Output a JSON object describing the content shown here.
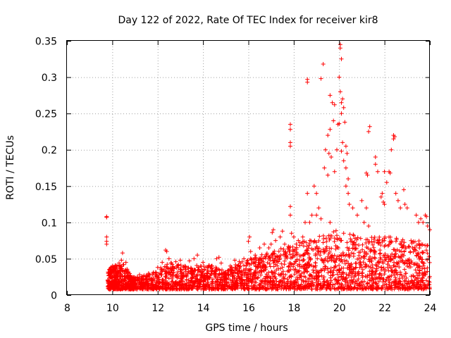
{
  "chart_data": {
    "type": "scatter",
    "title": "Day 122 of 2022, Rate Of TEC Index for receiver kir8",
    "xlabel": "GPS time / hours",
    "ylabel": "ROTI / TECUs",
    "xlim": [
      8,
      24
    ],
    "ylim": [
      0,
      0.35
    ],
    "xticks": [
      8,
      10,
      12,
      14,
      16,
      18,
      20,
      22,
      24
    ],
    "yticks": [
      0,
      0.05,
      0.1,
      0.15,
      0.2,
      0.25,
      0.3,
      0.35
    ],
    "xtick_labels": [
      "8",
      "10",
      "12",
      "14",
      "16",
      "18",
      "20",
      "22",
      "24"
    ],
    "ytick_labels": [
      "0",
      "0.05",
      "0.1",
      "0.15",
      "0.2",
      "0.25",
      "0.3",
      "0.35"
    ],
    "grid": true,
    "marker": "plus",
    "color": "#ff0000",
    "series": [
      {
        "name": "kir8",
        "points": [
          [
            9.75,
            0.108
          ],
          [
            9.75,
            0.107
          ],
          [
            9.75,
            0.08
          ],
          [
            9.75,
            0.074
          ],
          [
            9.75,
            0.07
          ],
          [
            9.8,
            0.02
          ],
          [
            9.9,
            0.028
          ],
          [
            10.0,
            0.032
          ],
          [
            10.1,
            0.038
          ],
          [
            10.2,
            0.04
          ],
          [
            10.3,
            0.044
          ],
          [
            10.4,
            0.048
          ],
          [
            10.45,
            0.058
          ],
          [
            10.5,
            0.042
          ],
          [
            10.6,
            0.045
          ],
          [
            10.7,
            0.032
          ],
          [
            10.8,
            0.026
          ],
          [
            11.0,
            0.024
          ],
          [
            11.2,
            0.028
          ],
          [
            11.4,
            0.027
          ],
          [
            11.6,
            0.03
          ],
          [
            11.8,
            0.03
          ],
          [
            12.0,
            0.038
          ],
          [
            12.2,
            0.045
          ],
          [
            12.35,
            0.062
          ],
          [
            12.4,
            0.06
          ],
          [
            12.5,
            0.05
          ],
          [
            12.6,
            0.044
          ],
          [
            12.8,
            0.046
          ],
          [
            13.0,
            0.048
          ],
          [
            13.2,
            0.04
          ],
          [
            13.4,
            0.047
          ],
          [
            13.6,
            0.05
          ],
          [
            13.75,
            0.055
          ],
          [
            13.9,
            0.04
          ],
          [
            14.0,
            0.045
          ],
          [
            14.2,
            0.038
          ],
          [
            14.4,
            0.04
          ],
          [
            14.6,
            0.05
          ],
          [
            14.7,
            0.052
          ],
          [
            14.8,
            0.044
          ],
          [
            15.0,
            0.03
          ],
          [
            15.2,
            0.04
          ],
          [
            15.4,
            0.048
          ],
          [
            15.6,
            0.046
          ],
          [
            15.8,
            0.05
          ],
          [
            16.0,
            0.074
          ],
          [
            16.05,
            0.08
          ],
          [
            16.1,
            0.06
          ],
          [
            16.3,
            0.055
          ],
          [
            16.5,
            0.065
          ],
          [
            16.7,
            0.07
          ],
          [
            16.9,
            0.065
          ],
          [
            17.0,
            0.07
          ],
          [
            17.05,
            0.086
          ],
          [
            17.1,
            0.09
          ],
          [
            17.2,
            0.075
          ],
          [
            17.4,
            0.08
          ],
          [
            17.5,
            0.088
          ],
          [
            17.6,
            0.07
          ],
          [
            17.8,
            0.06
          ],
          [
            17.85,
            0.235
          ],
          [
            17.85,
            0.228
          ],
          [
            17.85,
            0.21
          ],
          [
            17.85,
            0.205
          ],
          [
            17.85,
            0.122
          ],
          [
            17.85,
            0.11
          ],
          [
            17.9,
            0.085
          ],
          [
            18.0,
            0.08
          ],
          [
            18.2,
            0.075
          ],
          [
            18.4,
            0.08
          ],
          [
            18.6,
            0.297
          ],
          [
            18.6,
            0.293
          ],
          [
            18.6,
            0.14
          ],
          [
            18.5,
            0.1
          ],
          [
            18.7,
            0.1
          ],
          [
            18.8,
            0.11
          ],
          [
            18.9,
            0.15
          ],
          [
            19.0,
            0.14
          ],
          [
            19.1,
            0.12
          ],
          [
            19.3,
            0.318
          ],
          [
            19.2,
            0.298
          ],
          [
            19.6,
            0.275
          ],
          [
            19.7,
            0.265
          ],
          [
            19.8,
            0.262
          ],
          [
            19.9,
            0.2
          ],
          [
            19.95,
            0.235
          ],
          [
            19.75,
            0.24
          ],
          [
            19.6,
            0.228
          ],
          [
            19.5,
            0.22
          ],
          [
            19.4,
            0.2
          ],
          [
            19.55,
            0.195
          ],
          [
            19.65,
            0.19
          ],
          [
            19.35,
            0.175
          ],
          [
            19.8,
            0.17
          ],
          [
            19.5,
            0.165
          ],
          [
            20.05,
            0.345
          ],
          [
            20.05,
            0.34
          ],
          [
            20.1,
            0.325
          ],
          [
            20.0,
            0.3
          ],
          [
            20.05,
            0.28
          ],
          [
            20.15,
            0.27
          ],
          [
            20.1,
            0.265
          ],
          [
            20.2,
            0.258
          ],
          [
            20.1,
            0.25
          ],
          [
            20.25,
            0.238
          ],
          [
            20.0,
            0.236
          ],
          [
            20.15,
            0.21
          ],
          [
            20.3,
            0.205
          ],
          [
            20.1,
            0.198
          ],
          [
            20.35,
            0.195
          ],
          [
            20.2,
            0.185
          ],
          [
            20.3,
            0.175
          ],
          [
            20.4,
            0.16
          ],
          [
            20.3,
            0.15
          ],
          [
            20.4,
            0.14
          ],
          [
            20.45,
            0.125
          ],
          [
            19.0,
            0.11
          ],
          [
            19.2,
            0.105
          ],
          [
            19.6,
            0.1
          ],
          [
            20.6,
            0.12
          ],
          [
            20.8,
            0.11
          ],
          [
            21.0,
            0.13
          ],
          [
            21.1,
            0.1
          ],
          [
            21.2,
            0.12
          ],
          [
            21.3,
            0.095
          ],
          [
            21.2,
            0.168
          ],
          [
            21.25,
            0.165
          ],
          [
            21.35,
            0.232
          ],
          [
            21.3,
            0.225
          ],
          [
            21.6,
            0.19
          ],
          [
            21.6,
            0.18
          ],
          [
            21.7,
            0.17
          ],
          [
            21.85,
            0.135
          ],
          [
            21.9,
            0.14
          ],
          [
            21.95,
            0.128
          ],
          [
            22.0,
            0.125
          ],
          [
            22.1,
            0.155
          ],
          [
            22.0,
            0.17
          ],
          [
            22.2,
            0.17
          ],
          [
            22.25,
            0.168
          ],
          [
            22.3,
            0.2
          ],
          [
            22.4,
            0.22
          ],
          [
            22.4,
            0.215
          ],
          [
            22.45,
            0.218
          ],
          [
            22.5,
            0.14
          ],
          [
            22.6,
            0.13
          ],
          [
            22.7,
            0.12
          ],
          [
            22.85,
            0.145
          ],
          [
            22.9,
            0.125
          ],
          [
            23.0,
            0.12
          ],
          [
            23.4,
            0.11
          ],
          [
            23.5,
            0.1
          ],
          [
            23.6,
            0.105
          ],
          [
            23.7,
            0.1
          ],
          [
            23.8,
            0.11
          ],
          [
            23.85,
            0.108
          ],
          [
            23.9,
            0.095
          ],
          [
            24.0,
            0.09
          ]
        ],
        "band": [
          [
            9.8,
            0.008,
            0.034
          ],
          [
            10.0,
            0.008,
            0.04
          ],
          [
            10.2,
            0.008,
            0.042
          ],
          [
            10.5,
            0.008,
            0.044
          ],
          [
            10.8,
            0.008,
            0.028
          ],
          [
            11.0,
            0.008,
            0.025
          ],
          [
            11.5,
            0.008,
            0.028
          ],
          [
            12.0,
            0.008,
            0.035
          ],
          [
            12.5,
            0.008,
            0.045
          ],
          [
            13.0,
            0.008,
            0.042
          ],
          [
            13.5,
            0.008,
            0.04
          ],
          [
            14.0,
            0.008,
            0.042
          ],
          [
            14.5,
            0.008,
            0.04
          ],
          [
            15.0,
            0.008,
            0.032
          ],
          [
            15.5,
            0.008,
            0.045
          ],
          [
            16.0,
            0.008,
            0.05
          ],
          [
            16.5,
            0.008,
            0.055
          ],
          [
            17.0,
            0.008,
            0.06
          ],
          [
            17.5,
            0.008,
            0.065
          ],
          [
            18.0,
            0.008,
            0.07
          ],
          [
            18.5,
            0.008,
            0.075
          ],
          [
            19.0,
            0.008,
            0.08
          ],
          [
            19.5,
            0.008,
            0.085
          ],
          [
            20.0,
            0.008,
            0.09
          ],
          [
            20.5,
            0.008,
            0.085
          ],
          [
            21.0,
            0.008,
            0.085
          ],
          [
            21.5,
            0.008,
            0.08
          ],
          [
            22.0,
            0.008,
            0.08
          ],
          [
            22.5,
            0.008,
            0.08
          ],
          [
            23.0,
            0.008,
            0.075
          ],
          [
            23.5,
            0.008,
            0.075
          ],
          [
            24.0,
            0.008,
            0.07
          ]
        ]
      }
    ]
  }
}
